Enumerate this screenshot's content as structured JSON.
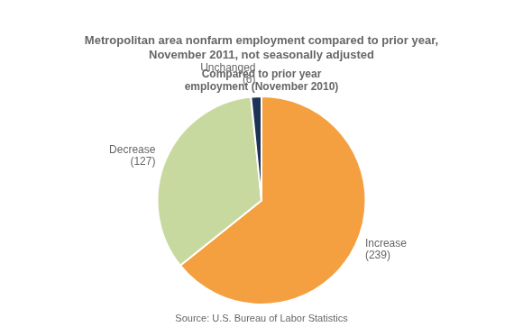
{
  "chart_data": {
    "type": "pie",
    "title": "Metropolitan area nonfarm employment compared to prior year,\nNovember 2011, not seasonally adjusted",
    "subtitle": "Compared to prior year\nemployment (November 2010)",
    "categories": [
      "Increase\n(239)",
      "Decrease\n(127)",
      "Unchanged\n(6)"
    ],
    "values": [
      239,
      127,
      6
    ],
    "colors": [
      "#F5A040",
      "#C8D9A0",
      "#1C3557"
    ],
    "source": "Source: U.S. Bureau of Labor Statistics"
  }
}
